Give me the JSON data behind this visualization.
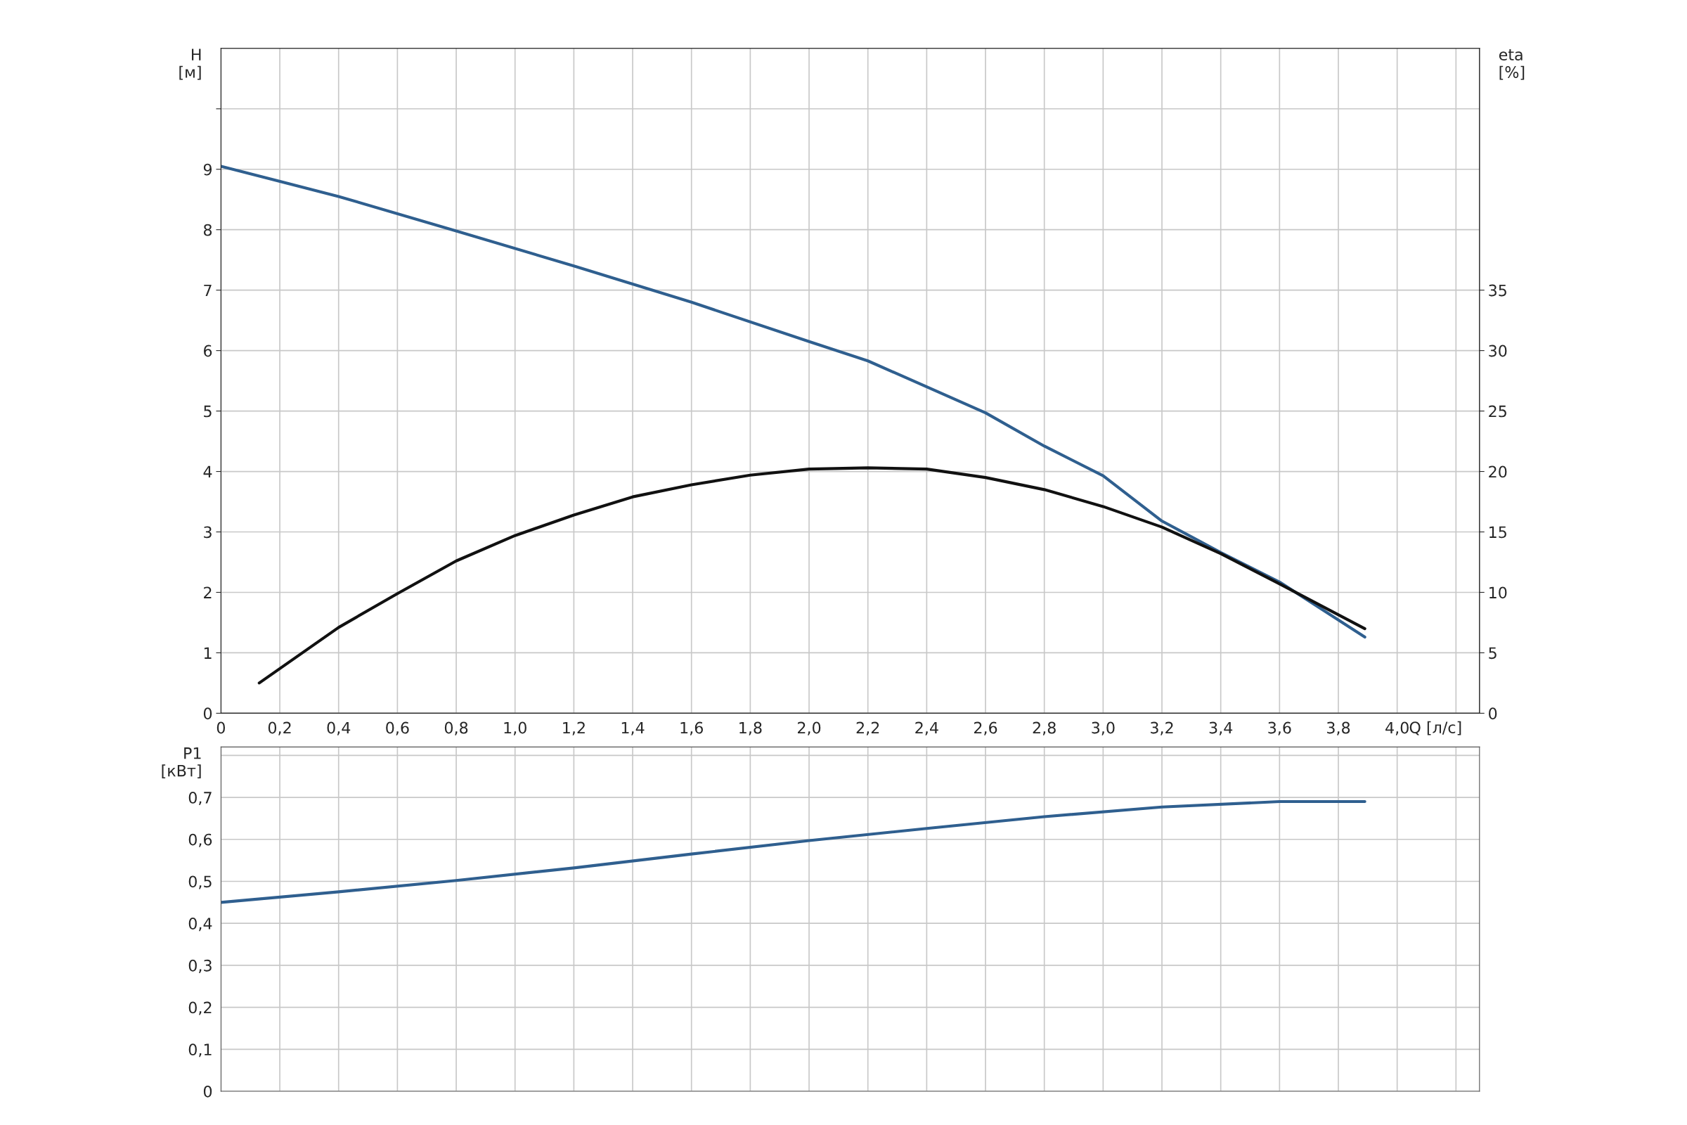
{
  "chart_data": [
    {
      "type": "line",
      "xlabel": "Q [л/с]",
      "ylabel": "H\n[м]",
      "y2label": "eta\n[%]",
      "xlim": [
        0,
        4.28
      ],
      "xticks": [
        0,
        {
          "value": 0.2,
          "label": "0,2"
        },
        {
          "value": 0.4,
          "label": "0,4"
        },
        {
          "value": 0.6,
          "label": "0,6"
        },
        {
          "value": 0.8,
          "label": "0,8"
        },
        {
          "value": 1.0,
          "label": "1,0"
        },
        {
          "value": 1.2,
          "label": "1,2"
        },
        {
          "value": 1.4,
          "label": "1,4"
        },
        {
          "value": 1.6,
          "label": "1,6"
        },
        {
          "value": 1.8,
          "label": "1,8"
        },
        {
          "value": 2.0,
          "label": "2,0"
        },
        {
          "value": 2.2,
          "label": "2,2"
        },
        {
          "value": 2.4,
          "label": "2,4"
        },
        {
          "value": 2.6,
          "label": "2,6"
        },
        {
          "value": 2.8,
          "label": "2,8"
        },
        {
          "value": 3.0,
          "label": "3,0"
        },
        {
          "value": 3.2,
          "label": "3,2"
        },
        {
          "value": 3.4,
          "label": "3,4"
        },
        {
          "value": 3.6,
          "label": "3,6"
        },
        {
          "value": 3.8,
          "label": "3,8"
        },
        {
          "value": 4.0,
          "label": "4,0"
        },
        {
          "value": 4.2,
          "label": null
        }
      ],
      "ylim": [
        0,
        11
      ],
      "yticks": [
        0,
        1,
        2,
        3,
        4,
        5,
        6,
        7,
        8,
        9,
        {
          "value": 10,
          "label": null
        }
      ],
      "y2lim": [
        0,
        55
      ],
      "y2ticks": [
        0,
        5,
        10,
        15,
        20,
        25,
        30,
        35
      ],
      "grid": true,
      "line_style": "solid",
      "marker": "none",
      "series": [
        {
          "color": "#2f5f8f",
          "x": [
            0,
            0.4,
            0.8,
            1.2,
            1.6,
            2.0,
            2.2,
            2.4,
            2.6,
            2.8,
            3.0,
            3.2,
            3.4,
            3.6,
            3.89
          ],
          "values": [
            9.05,
            8.55,
            7.98,
            7.4,
            6.8,
            6.15,
            5.83,
            5.4,
            4.97,
            4.42,
            3.93,
            3.18,
            2.66,
            2.17,
            1.26
          ]
        },
        {
          "color": "#111111",
          "axis": "y2",
          "x": [
            0.13,
            0.4,
            0.6,
            0.8,
            1.0,
            1.2,
            1.4,
            1.6,
            1.8,
            2.0,
            2.2,
            2.4,
            2.6,
            2.8,
            3.0,
            3.2,
            3.4,
            3.6,
            3.89
          ],
          "values": [
            2.5,
            7.1,
            9.9,
            12.6,
            14.7,
            16.4,
            17.9,
            18.9,
            19.7,
            20.2,
            20.3,
            20.2,
            19.5,
            18.5,
            17.1,
            15.4,
            13.2,
            10.7,
            7.0
          ]
        }
      ]
    },
    {
      "type": "line",
      "ylabel": "P1\n[кВт]",
      "tick_labels": "y",
      "xlim": [
        0,
        4.28
      ],
      "xticks": [
        0,
        0.2,
        0.4,
        0.6,
        0.8,
        1.0,
        1.2,
        1.4,
        1.6,
        1.8,
        2.0,
        2.2,
        2.4,
        2.6,
        2.8,
        3.0,
        3.2,
        3.4,
        3.6,
        3.8,
        4.0,
        4.2
      ],
      "ylim": [
        0,
        0.82
      ],
      "yticks": [
        0,
        {
          "value": 0.1,
          "label": "0,1"
        },
        {
          "value": 0.2,
          "label": "0,2"
        },
        {
          "value": 0.3,
          "label": "0,3"
        },
        {
          "value": 0.4,
          "label": "0,4"
        },
        {
          "value": 0.5,
          "label": "0,5"
        },
        {
          "value": 0.6,
          "label": "0,6"
        },
        {
          "value": 0.7,
          "label": "0,7"
        },
        {
          "value": 0.8,
          "label": null
        }
      ],
      "grid": true,
      "line_style": "solid",
      "marker": "none",
      "series": [
        {
          "color": "#2f5f8f",
          "x": [
            0,
            0.4,
            0.8,
            1.2,
            1.6,
            2.0,
            2.4,
            2.8,
            3.2,
            3.6,
            3.89
          ],
          "values": [
            0.45,
            0.475,
            0.502,
            0.532,
            0.565,
            0.597,
            0.626,
            0.654,
            0.677,
            0.69,
            0.69
          ]
        }
      ]
    }
  ]
}
